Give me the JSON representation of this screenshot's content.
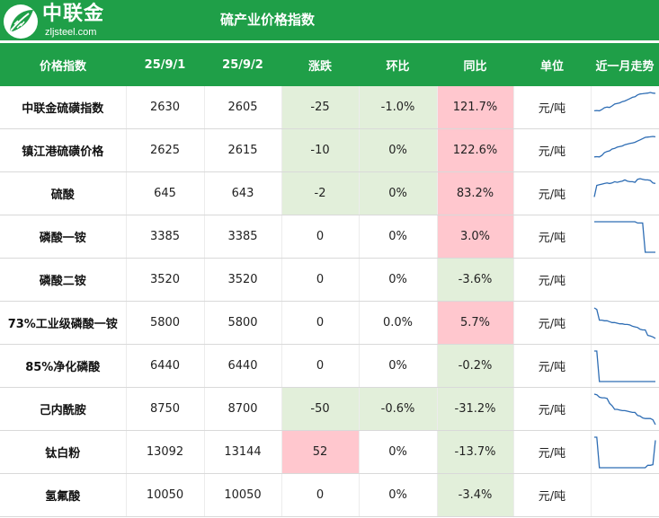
{
  "header": {
    "logo_text": "中联金",
    "logo_url": "zljsteel.com",
    "title": "硫产业价格指数"
  },
  "columns": [
    "价格指数",
    "25/9/1",
    "25/9/2",
    "涨跌",
    "环比",
    "同比",
    "单位",
    "近一月走势"
  ],
  "colors": {
    "brand": "#1f9f48",
    "decrease": "#e2efda",
    "increase": "#ffc7ce",
    "sparkline": "#2e6db4"
  },
  "rows": [
    {
      "name": "中联金硫磺指数",
      "d1": "2630",
      "d2": "2605",
      "change": "-25",
      "mom": "-1.0%",
      "yoy": "121.7%",
      "unit": "元/吨",
      "change_color": "green",
      "mom_color": "green",
      "yoy_color": "pink",
      "trend": [
        40,
        41,
        40,
        44,
        50,
        52,
        51,
        56,
        62,
        64,
        66,
        70,
        72,
        76,
        80,
        84,
        86,
        92,
        95,
        96,
        97,
        98,
        100,
        98,
        97
      ]
    },
    {
      "name": "镇江港硫磺价格",
      "d1": "2625",
      "d2": "2615",
      "change": "-10",
      "mom": "0%",
      "yoy": "122.6%",
      "unit": "元/吨",
      "change_color": "green",
      "mom_color": "green",
      "yoy_color": "pink",
      "trend": [
        30,
        31,
        30,
        35,
        44,
        48,
        50,
        56,
        58,
        62,
        64,
        66,
        70,
        72,
        74,
        76,
        78,
        82,
        86,
        90,
        94,
        95,
        96,
        97,
        96
      ]
    },
    {
      "name": "硫酸",
      "d1": "645",
      "d2": "643",
      "change": "-2",
      "mom": "0%",
      "yoy": "83.2%",
      "unit": "元/吨",
      "change_color": "green",
      "mom_color": "green",
      "yoy_color": "pink",
      "trend": [
        40,
        78,
        80,
        82,
        84,
        86,
        84,
        86,
        90,
        88,
        90,
        92,
        96,
        92,
        90,
        90,
        88,
        98,
        100,
        98,
        96,
        96,
        94,
        86,
        84
      ]
    },
    {
      "name": "磷酸一铵",
      "d1": "3385",
      "d2": "3385",
      "change": "0",
      "mom": "0%",
      "yoy": "3.0%",
      "unit": "元/吨",
      "change_color": "none",
      "mom_color": "none",
      "yoy_color": "pink",
      "trend": [
        100,
        100,
        100,
        100,
        100,
        100,
        100,
        100,
        100,
        100,
        100,
        100,
        100,
        100,
        100,
        100,
        100,
        96,
        96,
        96,
        0,
        0,
        0,
        0,
        0
      ]
    },
    {
      "name": "磷酸二铵",
      "d1": "3520",
      "d2": "3520",
      "change": "0",
      "mom": "0%",
      "yoy": "-3.6%",
      "unit": "元/吨",
      "change_color": "none",
      "mom_color": "none",
      "yoy_color": "green",
      "trend": []
    },
    {
      "name": "73%工业级磷酸一铵",
      "d1": "5800",
      "d2": "5800",
      "change": "0",
      "mom": "0.0%",
      "yoy": "5.7%",
      "unit": "元/吨",
      "change_color": "none",
      "mom_color": "none",
      "yoy_color": "pink",
      "trend": [
        100,
        95,
        60,
        60,
        58,
        58,
        55,
        52,
        52,
        50,
        48,
        48,
        46,
        46,
        44,
        40,
        38,
        36,
        30,
        28,
        28,
        10,
        8,
        5,
        0
      ]
    },
    {
      "name": "85%净化磷酸",
      "d1": "6440",
      "d2": "6440",
      "change": "0",
      "mom": "0%",
      "yoy": "-0.2%",
      "unit": "元/吨",
      "change_color": "none",
      "mom_color": "none",
      "yoy_color": "green",
      "trend": [
        100,
        100,
        0,
        0,
        0,
        0,
        0,
        0,
        0,
        0,
        0,
        0,
        0,
        0,
        0,
        0,
        0,
        0,
        0,
        0,
        0,
        0,
        0,
        0,
        0
      ]
    },
    {
      "name": "己内酰胺",
      "d1": "8750",
      "d2": "8700",
      "change": "-50",
      "mom": "-0.6%",
      "yoy": "-31.2%",
      "unit": "元/吨",
      "change_color": "green",
      "mom_color": "green",
      "yoy_color": "green",
      "trend": [
        100,
        98,
        90,
        88,
        88,
        86,
        70,
        62,
        50,
        50,
        48,
        46,
        46,
        44,
        42,
        40,
        40,
        30,
        28,
        22,
        20,
        20,
        20,
        16,
        0
      ]
    },
    {
      "name": "钛白粉",
      "d1": "13092",
      "d2": "13144",
      "change": "52",
      "mom": "0%",
      "yoy": "-13.7%",
      "unit": "元/吨",
      "change_color": "pink",
      "mom_color": "none",
      "yoy_color": "green",
      "trend": [
        100,
        100,
        0,
        0,
        0,
        0,
        0,
        0,
        0,
        0,
        0,
        0,
        0,
        0,
        0,
        0,
        0,
        0,
        0,
        0,
        0,
        8,
        8,
        10,
        90
      ]
    },
    {
      "name": "氢氟酸",
      "d1": "10050",
      "d2": "10050",
      "change": "0",
      "mom": "0%",
      "yoy": "-3.4%",
      "unit": "元/吨",
      "change_color": "none",
      "mom_color": "none",
      "yoy_color": "green",
      "trend": []
    }
  ]
}
